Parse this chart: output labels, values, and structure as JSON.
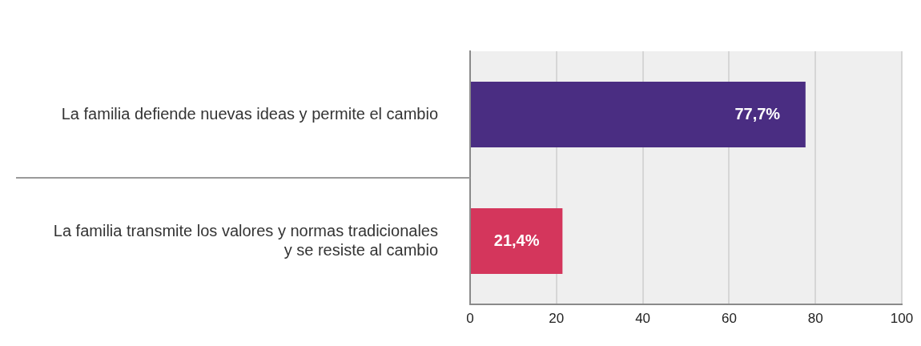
{
  "chart_data": {
    "type": "bar",
    "orientation": "horizontal",
    "categories": [
      "La familia defiende nuevas ideas y permite el cambio",
      "La familia transmite los valores y normas tradicionales y se resiste al cambio"
    ],
    "values": [
      77.7,
      21.4
    ],
    "value_labels": [
      "77,7%",
      "21,4%"
    ],
    "colors": [
      "#4a2d82",
      "#d4365c"
    ],
    "xlim": [
      0,
      100
    ],
    "xticks": [
      0,
      20,
      40,
      60,
      80,
      100
    ],
    "grid": "x",
    "legend": false
  }
}
